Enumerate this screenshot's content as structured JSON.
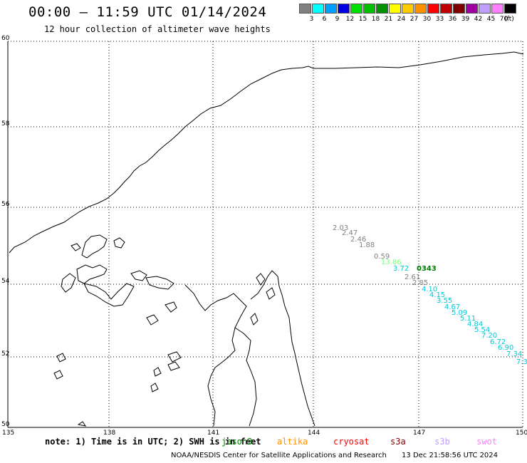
{
  "header": {
    "title": "00:00 – 11:59 UTC 01/14/2024",
    "subtitle": "12 hour collection of altimeter wave heights"
  },
  "legend": {
    "unit": "(ft)",
    "items": [
      {
        "label": "3",
        "color": "#808080"
      },
      {
        "label": "6",
        "color": "#00ffff"
      },
      {
        "label": "9",
        "color": "#00a0ff"
      },
      {
        "label": "12",
        "color": "#0000e0"
      },
      {
        "label": "15",
        "color": "#00e000"
      },
      {
        "label": "18",
        "color": "#00c000"
      },
      {
        "label": "21",
        "color": "#009000"
      },
      {
        "label": "24",
        "color": "#ffff00"
      },
      {
        "label": "27",
        "color": "#ffcc00"
      },
      {
        "label": "30",
        "color": "#ff9000"
      },
      {
        "label": "33",
        "color": "#ff0000"
      },
      {
        "label": "36",
        "color": "#c00000"
      },
      {
        "label": "39",
        "color": "#800000"
      },
      {
        "label": "42",
        "color": "#a000a0"
      },
      {
        "label": "45",
        "color": "#c0a0ff"
      },
      {
        "label": "70",
        "color": "#ff80ff"
      },
      {
        "label": "",
        "color": "#000000"
      }
    ]
  },
  "map": {
    "lat_labels": [
      "60",
      "58",
      "56",
      "54",
      "52",
      "50"
    ],
    "lon_labels": [
      "135",
      "138",
      "141",
      "144",
      "147",
      "150"
    ],
    "observations": [
      {
        "text": "2.03",
        "color": "#808080"
      },
      {
        "text": "2.47",
        "color": "#808080"
      },
      {
        "text": "2.46",
        "color": "#808080"
      },
      {
        "text": "1.88",
        "color": "#808080"
      },
      {
        "text": "0.59",
        "color": "#808080"
      },
      {
        "text": "13.86",
        "color": "#80ff80"
      },
      {
        "text": "3.72",
        "color": "#00c8d8"
      },
      {
        "text": "0343",
        "color": "#008000"
      },
      {
        "text": "2.61",
        "color": "#808080"
      },
      {
        "text": "2.85",
        "color": "#808080"
      },
      {
        "text": "4.10",
        "color": "#00c8d8"
      },
      {
        "text": "4.15",
        "color": "#00c8d8"
      },
      {
        "text": "3.55",
        "color": "#00c8d8"
      },
      {
        "text": "4.67",
        "color": "#00c8d8"
      },
      {
        "text": "5.09",
        "color": "#00c8d8"
      },
      {
        "text": "5.11",
        "color": "#00c8d8"
      },
      {
        "text": "4.84",
        "color": "#00c8d8"
      },
      {
        "text": "5.54",
        "color": "#00c8d8"
      },
      {
        "text": "7.20",
        "color": "#00c8d8"
      },
      {
        "text": "6.72",
        "color": "#00c8d8"
      },
      {
        "text": "6.90",
        "color": "#00c8d8"
      },
      {
        "text": "7.34",
        "color": "#00c8d8"
      },
      {
        "text": "7.3",
        "color": "#00c8d8"
      }
    ]
  },
  "note": {
    "text": "note: 1) Time is in UTC; 2) SWH is in feet",
    "satellites": [
      {
        "name": "jason3",
        "color": "#008000"
      },
      {
        "name": "altika",
        "color": "#ff9000"
      },
      {
        "name": "cryosat",
        "color": "#ff0000"
      },
      {
        "name": "s3a",
        "color": "#800000"
      },
      {
        "name": "s3b",
        "color": "#c0a0ff"
      },
      {
        "name": "swot",
        "color": "#ff80ff"
      }
    ]
  },
  "footer": {
    "credit": "NOAA/NESDIS Center for Satellite Applications and Research",
    "timestamp": "13 Dec 21:58:56 UTC 2024"
  }
}
